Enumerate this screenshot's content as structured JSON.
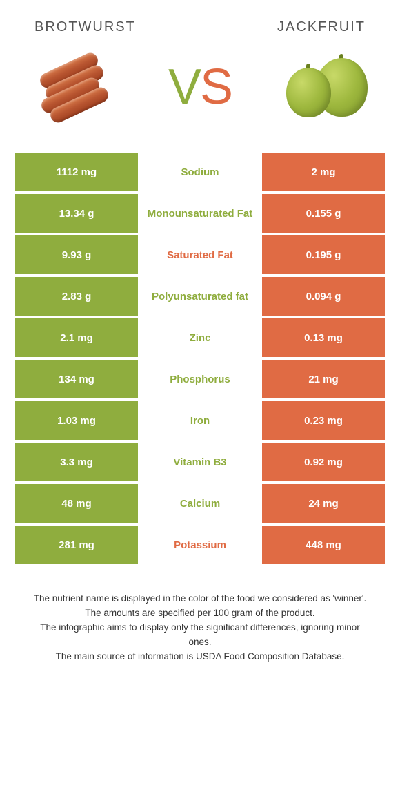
{
  "colors": {
    "green": "#8fad3e",
    "orange": "#e06b44",
    "white": "#ffffff",
    "text": "#333333"
  },
  "header": {
    "left_title": "BROTWURST",
    "right_title": "JACKFRUIT"
  },
  "vs": {
    "v": "V",
    "s": "S"
  },
  "rows": [
    {
      "nutrient": "Sodium",
      "left": "1112 mg",
      "right": "2 mg",
      "winner": "left"
    },
    {
      "nutrient": "Monounsaturated Fat",
      "left": "13.34 g",
      "right": "0.155 g",
      "winner": "left"
    },
    {
      "nutrient": "Saturated Fat",
      "left": "9.93 g",
      "right": "0.195 g",
      "winner": "right"
    },
    {
      "nutrient": "Polyunsaturated fat",
      "left": "2.83 g",
      "right": "0.094 g",
      "winner": "left"
    },
    {
      "nutrient": "Zinc",
      "left": "2.1 mg",
      "right": "0.13 mg",
      "winner": "left"
    },
    {
      "nutrient": "Phosphorus",
      "left": "134 mg",
      "right": "21 mg",
      "winner": "left"
    },
    {
      "nutrient": "Iron",
      "left": "1.03 mg",
      "right": "0.23 mg",
      "winner": "left"
    },
    {
      "nutrient": "Vitamin B3",
      "left": "3.3 mg",
      "right": "0.92 mg",
      "winner": "left"
    },
    {
      "nutrient": "Calcium",
      "left": "48 mg",
      "right": "24 mg",
      "winner": "left"
    },
    {
      "nutrient": "Potassium",
      "left": "281 mg",
      "right": "448 mg",
      "winner": "right"
    }
  ],
  "footer": {
    "line1": "The nutrient name is displayed in the color of the food we considered as 'winner'.",
    "line2": "The amounts are specified per 100 gram of the product.",
    "line3": "The infographic aims to display only the significant differences, ignoring minor ones.",
    "line4": "The main source of information is USDA Food Composition Database."
  }
}
